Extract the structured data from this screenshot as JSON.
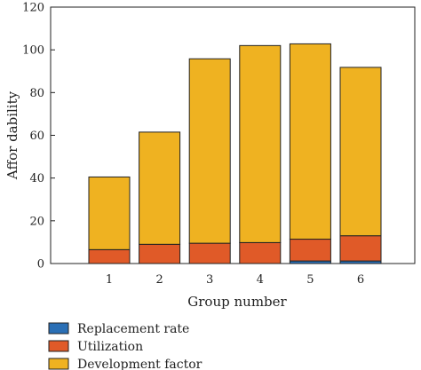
{
  "chart_data": {
    "type": "bar",
    "stacked": true,
    "categories": [
      "1",
      "2",
      "3",
      "4",
      "5",
      "6"
    ],
    "series": [
      {
        "name": "Replacement rate",
        "color": "#2a6fb5",
        "values": [
          0,
          0,
          0,
          0,
          1.2,
          1.2
        ]
      },
      {
        "name": "Utilization",
        "color": "#e05a28",
        "values": [
          6.5,
          9.0,
          9.5,
          9.8,
          10.2,
          11.8
        ]
      },
      {
        "name": "Development factor",
        "color": "#efb221",
        "values": [
          34.0,
          52.5,
          86.3,
          92.2,
          91.4,
          78.8
        ]
      }
    ],
    "xlabel": "Group number",
    "ylabel": "Affor dability",
    "ylim": [
      0,
      120
    ],
    "yticks": [
      "0",
      "20",
      "40",
      "60",
      "80",
      "100",
      "120"
    ],
    "grid": false,
    "legend_position": "bottom-left"
  }
}
